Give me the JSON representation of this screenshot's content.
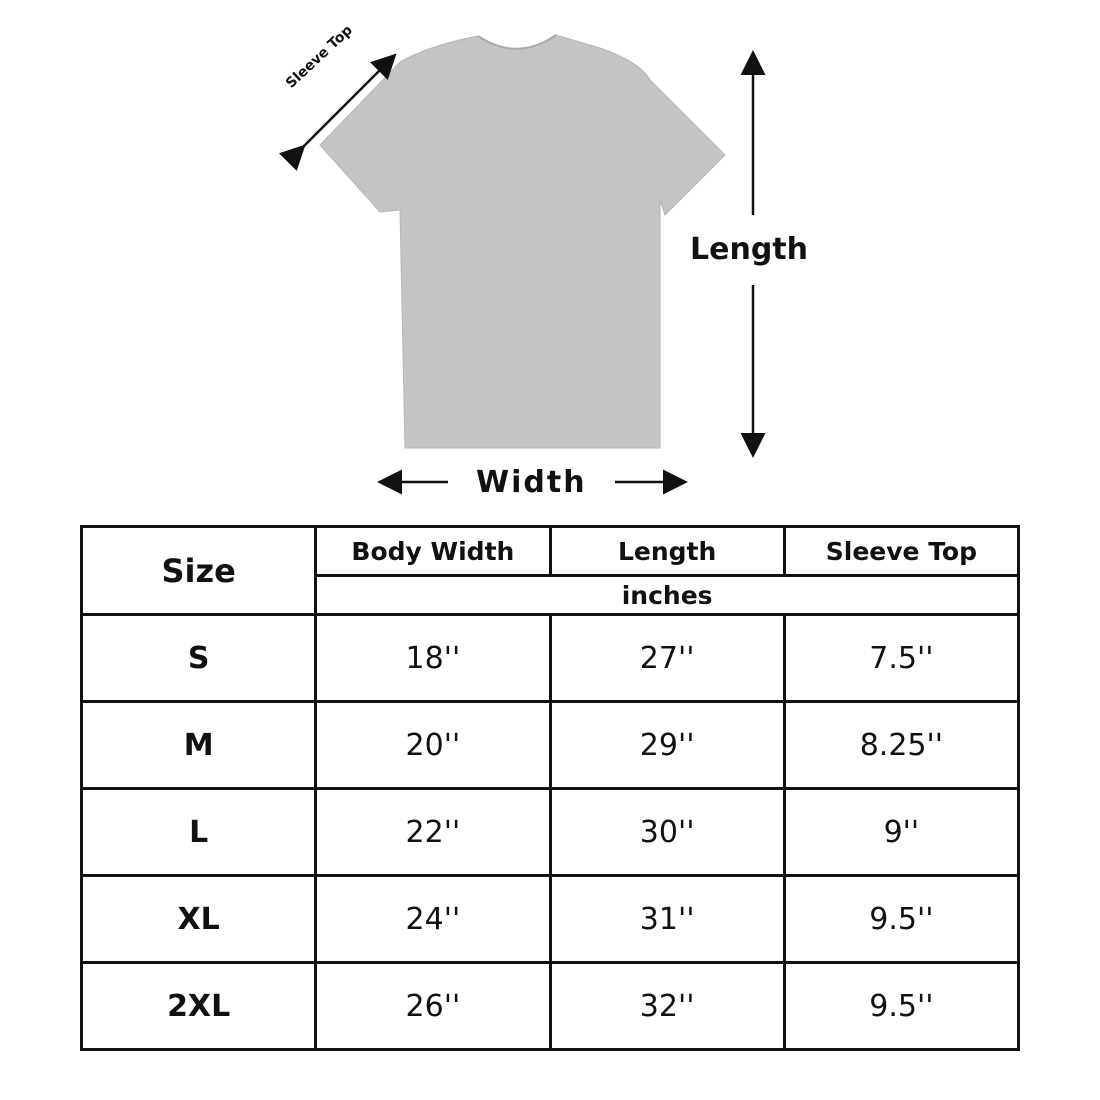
{
  "diagram": {
    "sleeve_label": "Sleeve Top",
    "length_label": "Length",
    "width_label": "Width",
    "shirt_color": "#c4c4c4"
  },
  "table": {
    "size_header": "Size",
    "columns": [
      "Body Width",
      "Length",
      "Sleeve Top"
    ],
    "unit": "inches",
    "rows": [
      {
        "size": "S",
        "body_width": "18''",
        "length": "27''",
        "sleeve_top": "7.5''"
      },
      {
        "size": "M",
        "body_width": "20''",
        "length": "29''",
        "sleeve_top": "8.25''"
      },
      {
        "size": "L",
        "body_width": "22''",
        "length": "30''",
        "sleeve_top": "9''"
      },
      {
        "size": "XL",
        "body_width": "24''",
        "length": "31''",
        "sleeve_top": "9.5''"
      },
      {
        "size": "2XL",
        "body_width": "26''",
        "length": "32''",
        "sleeve_top": "9.5''"
      }
    ]
  }
}
